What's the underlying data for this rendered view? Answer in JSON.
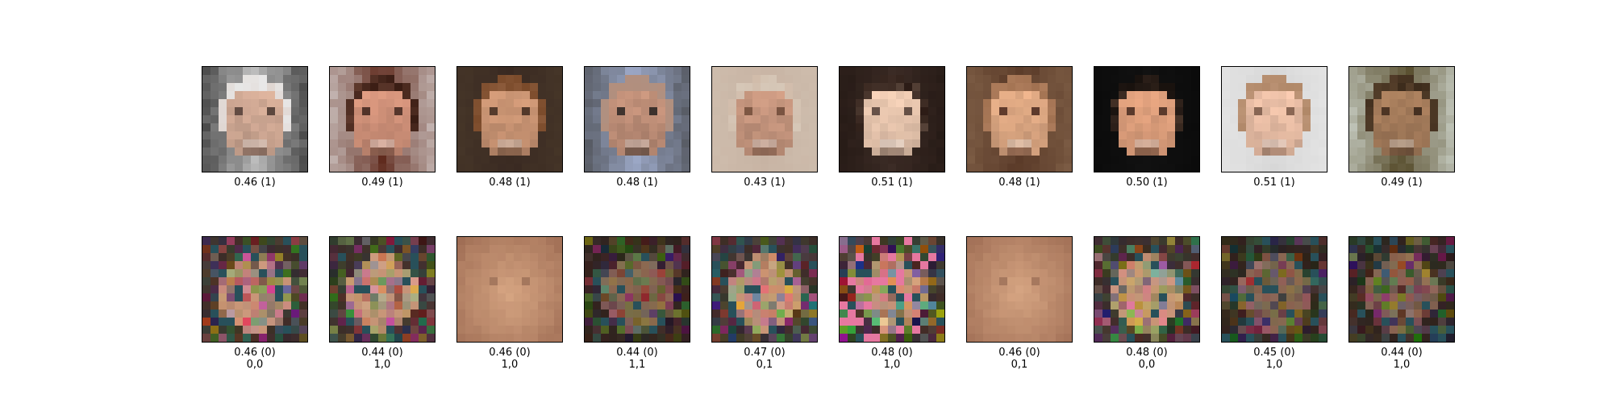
{
  "figure": {
    "real_row": [
      {
        "score": "0.46 (1)",
        "image": "face-photo-older-man-smiling"
      },
      {
        "score": "0.49 (1)",
        "image": "face-photo-young-man-smiling"
      },
      {
        "score": "0.48 (1)",
        "image": "face-photo-woman-auburn-hair"
      },
      {
        "score": "0.48 (1)",
        "image": "face-photo-bald-man-glasses-beard"
      },
      {
        "score": "0.43 (1)",
        "image": "face-photo-man-tanned"
      },
      {
        "score": "0.51 (1)",
        "image": "face-photo-woman-dark-hair"
      },
      {
        "score": "0.48 (1)",
        "image": "face-photo-man-talking"
      },
      {
        "score": "0.50 (1)",
        "image": "face-photo-woman-smiling-black-hair"
      },
      {
        "score": "0.51 (1)",
        "image": "face-photo-woman-light-background"
      },
      {
        "score": "0.49 (1)",
        "image": "face-photo-man-curly-hair"
      }
    ],
    "generated_row": [
      {
        "score": "0.46 (0)",
        "label": "0,0",
        "image": "generated-face-noisy"
      },
      {
        "score": "0.44 (0)",
        "label": "1,0",
        "image": "generated-face-noisy"
      },
      {
        "score": "0.46 (0)",
        "label": "1,0",
        "image": "generated-face-blurry-tan"
      },
      {
        "score": "0.44 (0)",
        "label": "1,1",
        "image": "generated-face-noisy-dark"
      },
      {
        "score": "0.47 (0)",
        "label": "0,1",
        "image": "generated-face-noisy"
      },
      {
        "score": "0.48 (0)",
        "label": "1,0",
        "image": "generated-face-noisy-colorful"
      },
      {
        "score": "0.46 (0)",
        "label": "0,1",
        "image": "generated-face-blurry-tan"
      },
      {
        "score": "0.48 (0)",
        "label": "0,0",
        "image": "generated-face-noisy"
      },
      {
        "score": "0.45 (0)",
        "label": "1,0",
        "image": "generated-face-noisy-dark"
      },
      {
        "score": "0.44 (0)",
        "label": "1,0",
        "image": "generated-face-noisy-dark"
      }
    ]
  }
}
